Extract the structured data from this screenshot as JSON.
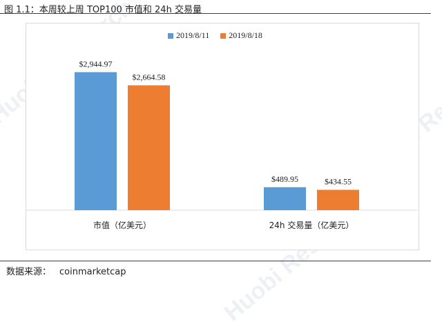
{
  "figure": {
    "title": "图 1.1：本周较上周 TOP100 市值和 24h 交易量",
    "source_label": "数据来源：",
    "source_value": "coinmarketcap"
  },
  "watermarks": [
    "Huobi Research",
    "Huobi Research",
    "Huobi Research",
    "Huobi Research"
  ],
  "chart_data": {
    "type": "bar",
    "categories": [
      "市值（亿美元）",
      "24h 交易量（亿美元）"
    ],
    "series": [
      {
        "name": "2019/8/11",
        "values": [
          2944.97,
          489.95
        ],
        "labels": [
          "$2,944.97",
          "$489.95"
        ],
        "color": "#5b9bd5"
      },
      {
        "name": "2019/8/18",
        "values": [
          2664.58,
          434.55
        ],
        "labels": [
          "$2,664.58",
          "$434.55"
        ],
        "color": "#ed7d31"
      }
    ],
    "title": "",
    "xlabel": "",
    "ylabel": "",
    "ylim": [
      0,
      3600
    ],
    "grid": false,
    "legend_position": "top-center"
  }
}
